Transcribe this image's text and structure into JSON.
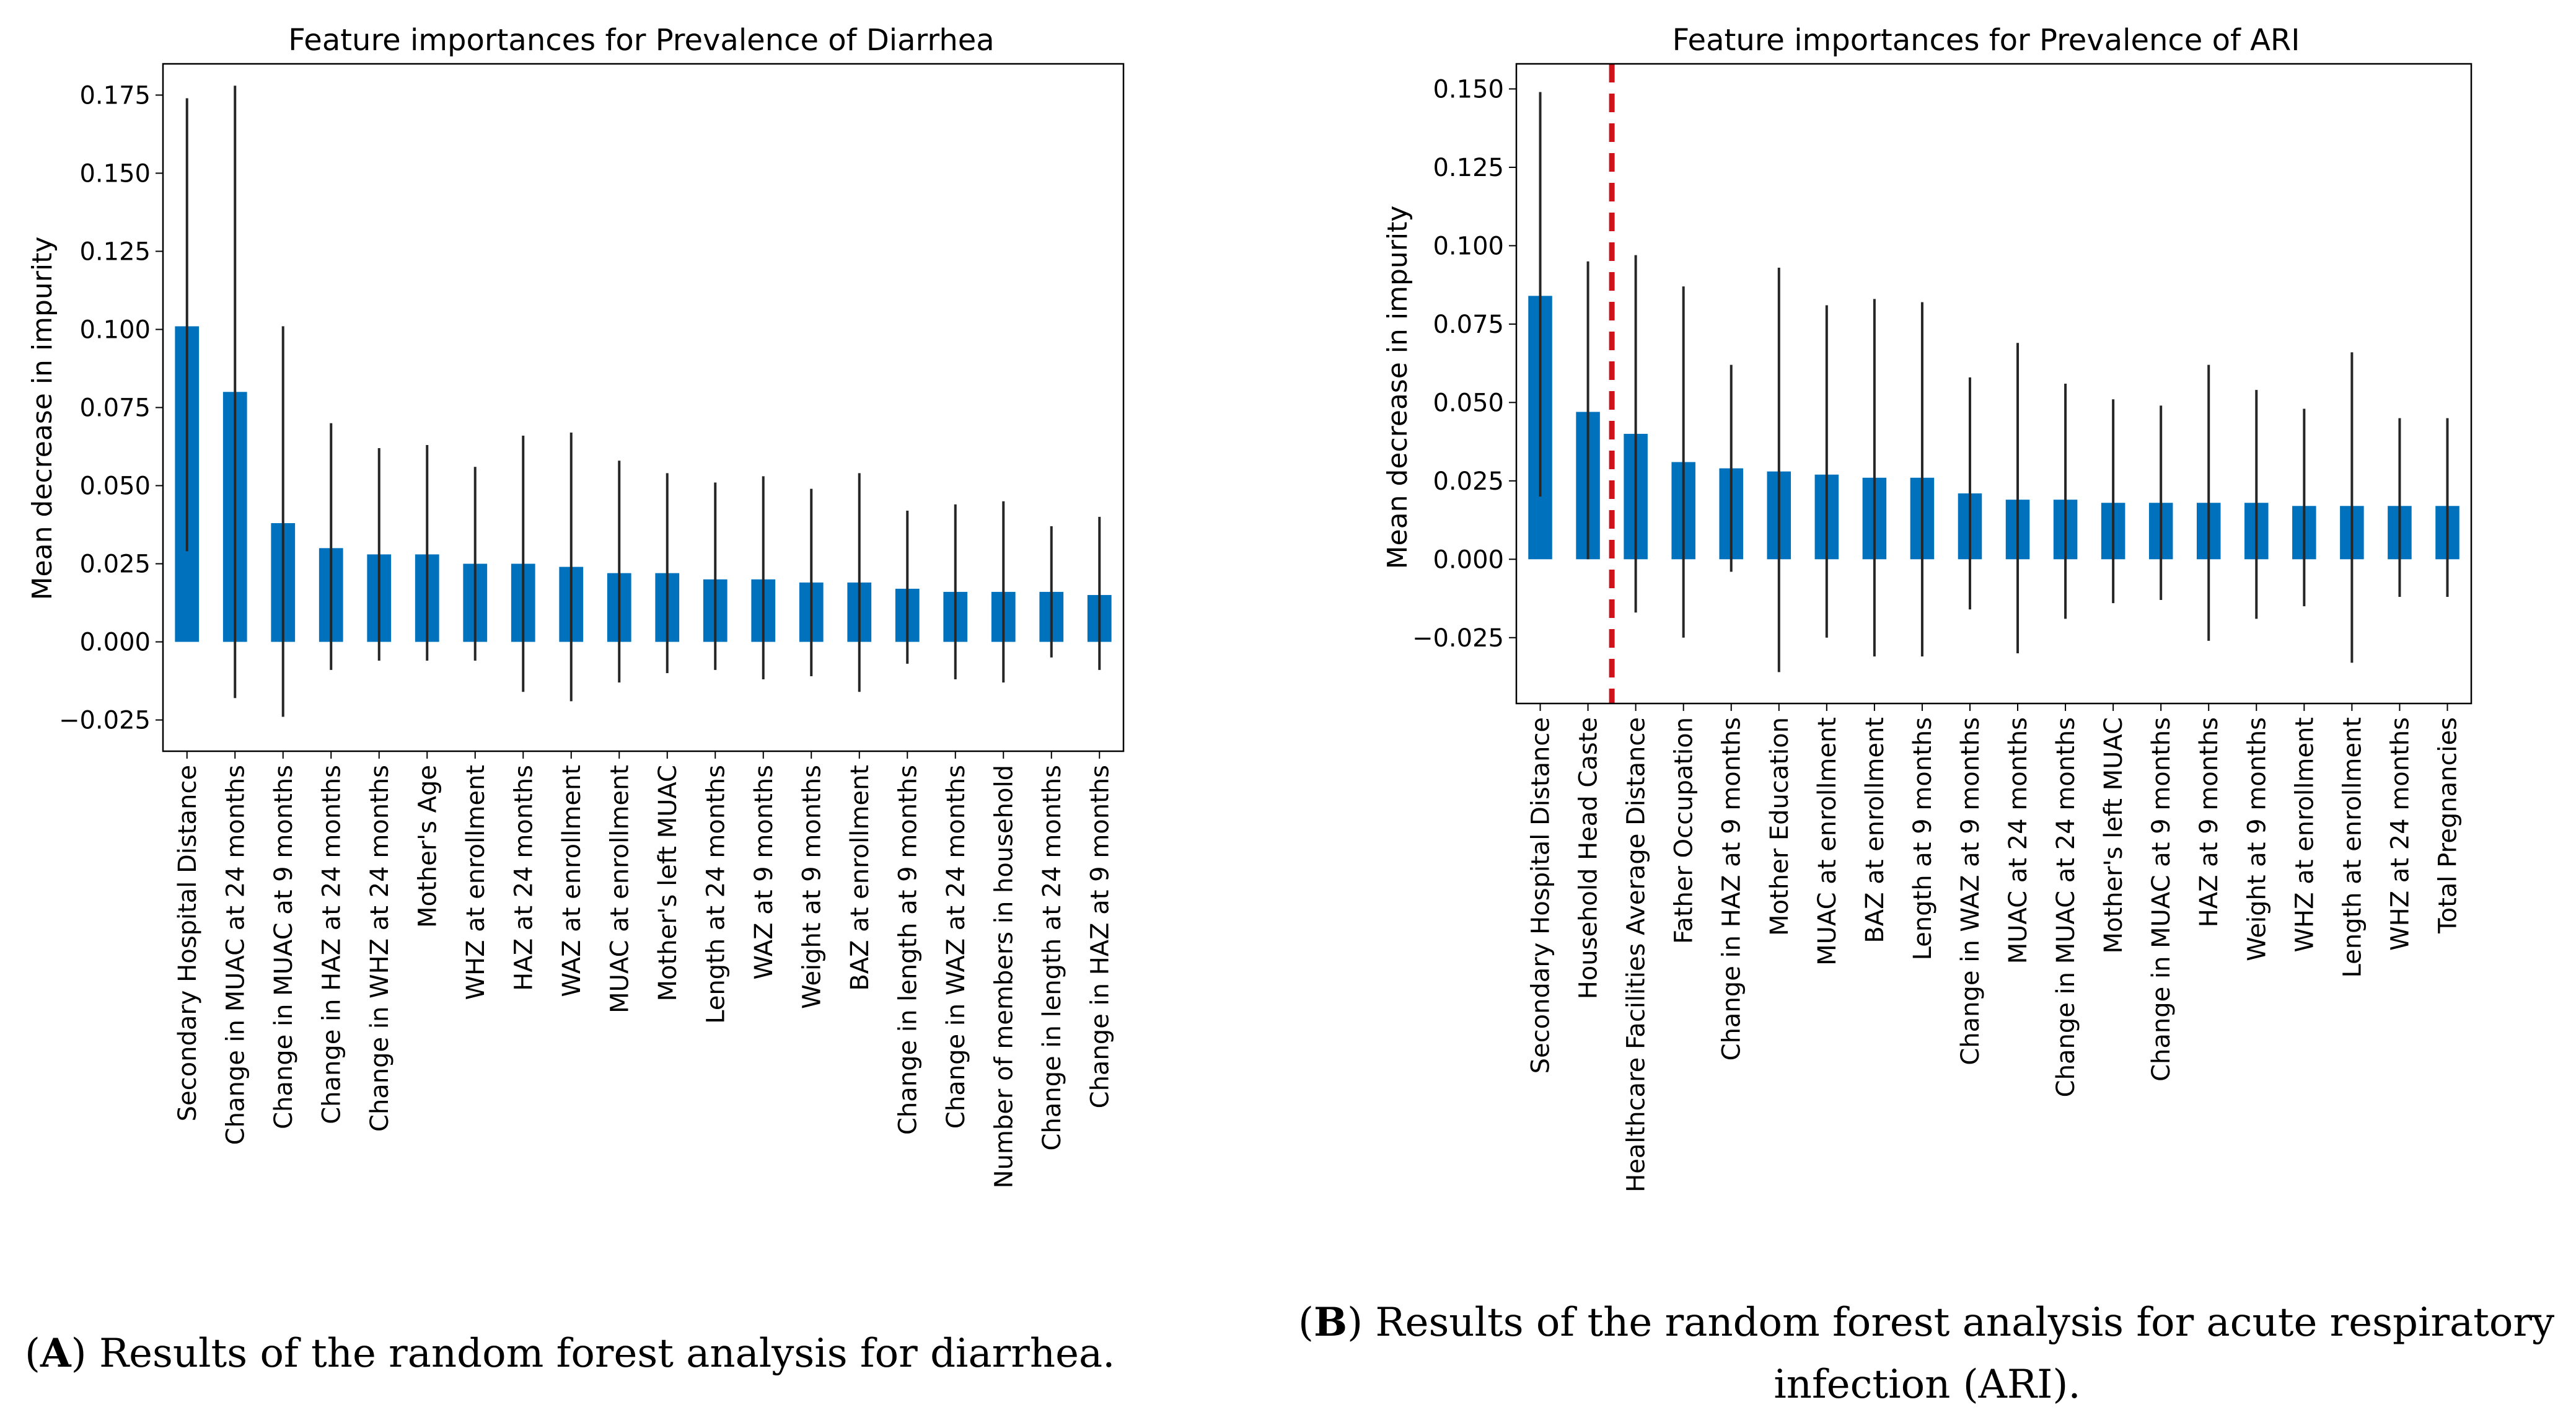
{
  "chart_data": [
    {
      "type": "bar",
      "panel": "A",
      "title": "Feature importances for Prevalence of Diarrhea",
      "xlabel": "",
      "ylabel": "Mean decrease in impurity",
      "ylim": [
        -0.035,
        0.185
      ],
      "yticks": [
        -0.025,
        0.0,
        0.025,
        0.05,
        0.075,
        0.1,
        0.125,
        0.15,
        0.175
      ],
      "ytick_labels": [
        "−0.025",
        "0.000",
        "0.025",
        "0.050",
        "0.075",
        "0.100",
        "0.125",
        "0.150",
        "0.175"
      ],
      "grid": false,
      "bar_color": "#0072bd",
      "errorbar_color": "#262626",
      "categories": [
        "Secondary Hospital Distance",
        "Change in MUAC at 24 months",
        "Change in MUAC at 9 months",
        "Change in HAZ at 24 months",
        "Change in WHZ at 24 months",
        "Mother's Age",
        "WHZ at enrollment",
        "HAZ at 24 months",
        "WAZ at enrollment",
        "MUAC at enrollment",
        "Mother's left MUAC",
        "Length at 24 months",
        "WAZ at 9 months",
        "Weight at 9 months",
        "BAZ at enrollment",
        "Change in length at 9 months",
        "Change in WAZ at 24 months",
        "Number of members in household",
        "Change in length at 24 months",
        "Change in HAZ at 9 months"
      ],
      "values": [
        0.101,
        0.08,
        0.038,
        0.03,
        0.028,
        0.028,
        0.025,
        0.025,
        0.024,
        0.022,
        0.022,
        0.02,
        0.02,
        0.019,
        0.019,
        0.017,
        0.016,
        0.016,
        0.016,
        0.015
      ],
      "error_low": [
        0.029,
        -0.018,
        -0.024,
        -0.009,
        -0.006,
        -0.006,
        -0.006,
        -0.016,
        -0.019,
        -0.013,
        -0.01,
        -0.009,
        -0.012,
        -0.011,
        -0.016,
        -0.007,
        -0.012,
        -0.013,
        -0.005,
        -0.009
      ],
      "error_high": [
        0.174,
        0.178,
        0.101,
        0.07,
        0.062,
        0.063,
        0.056,
        0.066,
        0.067,
        0.058,
        0.054,
        0.051,
        0.053,
        0.049,
        0.054,
        0.042,
        0.044,
        0.045,
        0.037,
        0.04
      ]
    },
    {
      "type": "bar",
      "panel": "B",
      "title": "Feature importances for Prevalence of ARI",
      "xlabel": "",
      "ylabel": "Mean decrease in impurity",
      "ylim": [
        -0.046,
        0.158
      ],
      "yticks": [
        -0.025,
        0.0,
        0.025,
        0.05,
        0.075,
        0.1,
        0.125,
        0.15
      ],
      "ytick_labels": [
        "−0.025",
        "0.000",
        "0.025",
        "0.050",
        "0.075",
        "0.100",
        "0.125",
        "0.150"
      ],
      "grid": false,
      "bar_color": "#0072bd",
      "errorbar_color": "#262626",
      "cutoff_line": {
        "after_category_index": 1.5,
        "color": "#d0121b",
        "style": "dashed"
      },
      "categories": [
        "Secondary Hospital Distance",
        "Household Head Caste",
        "Healthcare Facilities Average Distance",
        "Father Occupation",
        "Change in HAZ at 9 months",
        "Mother Education",
        "MUAC at enrollment",
        "BAZ at enrollment",
        "Length at 9 months",
        "Change in WAZ at 9 months",
        "MUAC at 24 months",
        "Change in MUAC at 24 months",
        "Mother's left MUAC",
        "Change in MUAC at 9 months",
        "HAZ at 9 months",
        "Weight at 9 months",
        "WHZ at enrollment",
        "Length at enrollment",
        "WHZ at 24 months",
        "Total Pregnancies"
      ],
      "values": [
        0.084,
        0.047,
        0.04,
        0.031,
        0.029,
        0.028,
        0.027,
        0.026,
        0.026,
        0.021,
        0.019,
        0.019,
        0.018,
        0.018,
        0.018,
        0.018,
        0.017,
        0.017,
        0.017,
        0.017
      ],
      "error_low": [
        0.02,
        0.0,
        -0.017,
        -0.025,
        -0.004,
        -0.036,
        -0.025,
        -0.031,
        -0.031,
        -0.016,
        -0.03,
        -0.019,
        -0.014,
        -0.013,
        -0.026,
        -0.019,
        -0.015,
        -0.033,
        -0.012,
        -0.012
      ],
      "error_high": [
        0.149,
        0.095,
        0.097,
        0.087,
        0.062,
        0.093,
        0.081,
        0.083,
        0.082,
        0.058,
        0.069,
        0.056,
        0.051,
        0.049,
        0.062,
        0.054,
        0.048,
        0.066,
        0.045,
        0.045
      ]
    }
  ],
  "captions": {
    "a": {
      "letter": "A",
      "text": ") Results of the random forest analysis for diarrhea."
    },
    "b": {
      "letter": "B",
      "line1": ") Results of the random forest analysis for acute respiratory",
      "line2": "infection (ARI)."
    }
  }
}
